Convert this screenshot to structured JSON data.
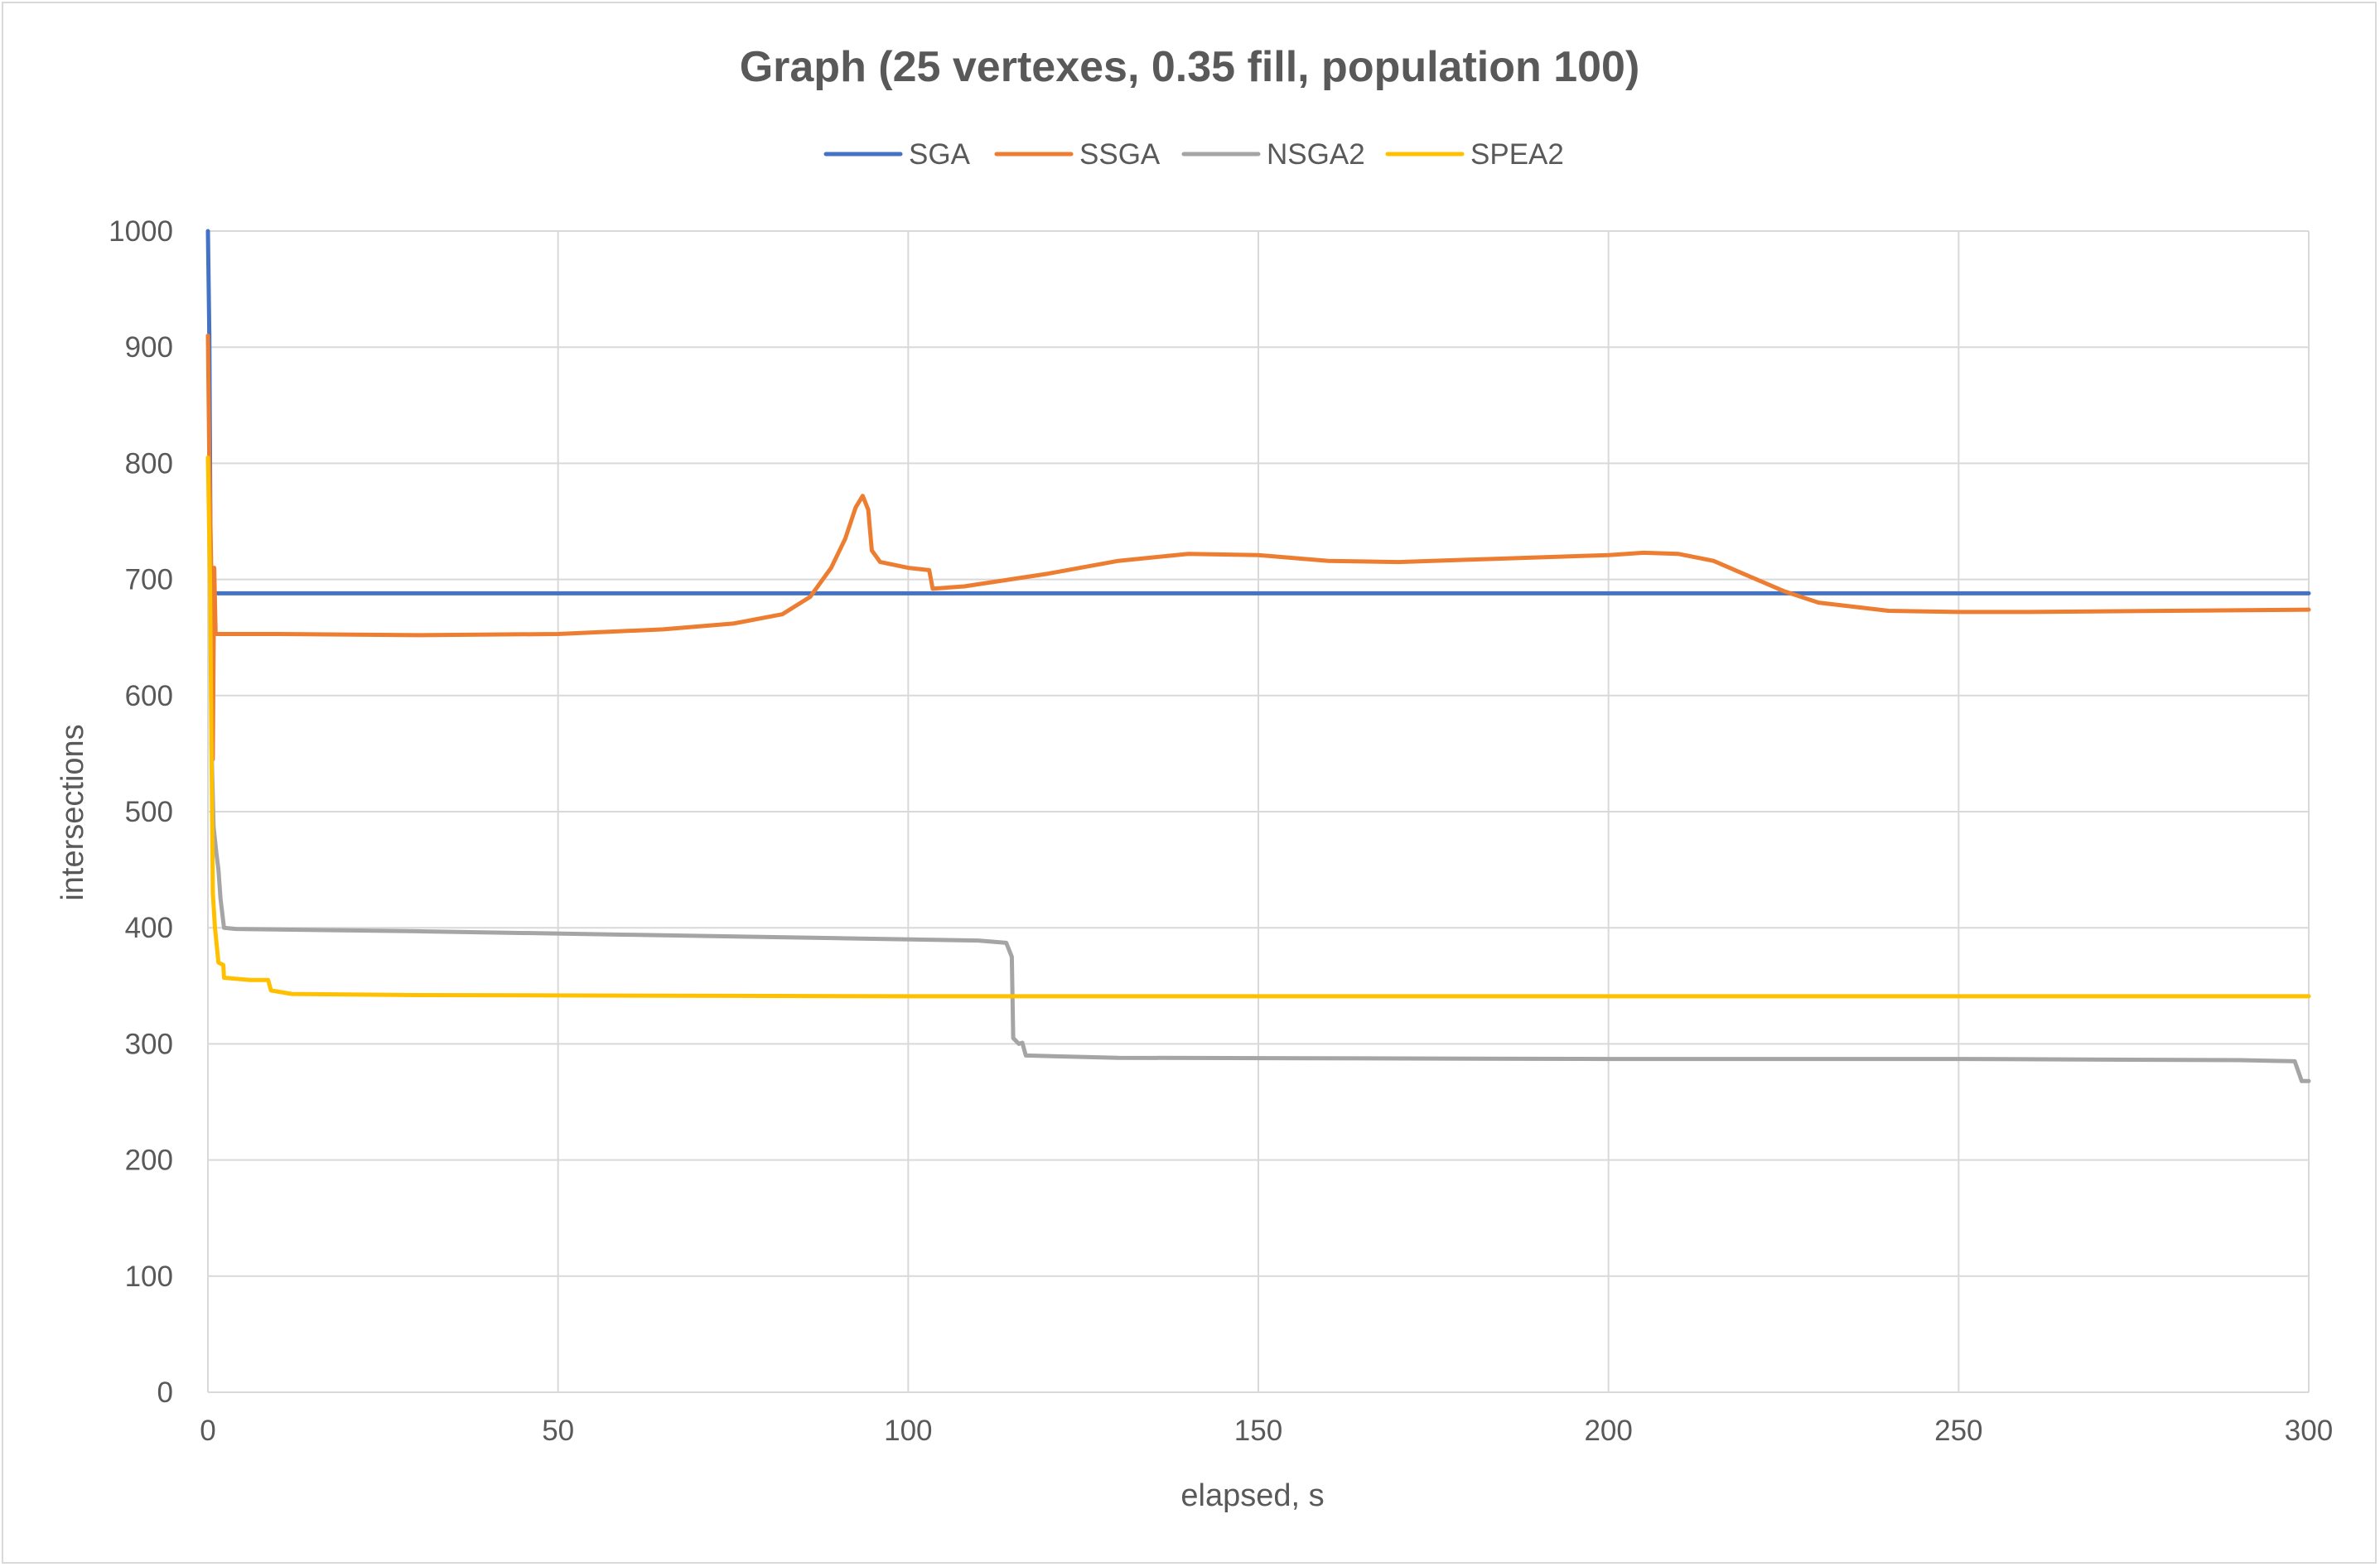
{
  "chart_data": {
    "type": "line",
    "title": "Graph (25 vertexes, 0.35 fill, population 100)",
    "xlabel": "elapsed, s",
    "ylabel": "intersections",
    "xlim": [
      0,
      300
    ],
    "ylim": [
      0,
      1000
    ],
    "xticks": [
      0,
      50,
      100,
      150,
      200,
      250,
      300
    ],
    "yticks": [
      0,
      100,
      200,
      300,
      400,
      500,
      600,
      700,
      800,
      900,
      1000
    ],
    "grid": true,
    "legend_position": "top",
    "series": [
      {
        "name": "SGA",
        "color": "#4472c4",
        "points": [
          [
            0,
            1000
          ],
          [
            0.2,
            910
          ],
          [
            0.4,
            688
          ],
          [
            300,
            688
          ]
        ]
      },
      {
        "name": "SSGA",
        "color": "#ed7d31",
        "points": [
          [
            0,
            910
          ],
          [
            0.2,
            800
          ],
          [
            0.5,
            700
          ],
          [
            0.7,
            545
          ],
          [
            0.9,
            710
          ],
          [
            1.1,
            653
          ],
          [
            10,
            653
          ],
          [
            30,
            652
          ],
          [
            50,
            653
          ],
          [
            65,
            657
          ],
          [
            75,
            662
          ],
          [
            82,
            670
          ],
          [
            86,
            685
          ],
          [
            89,
            710
          ],
          [
            91,
            735
          ],
          [
            92.5,
            762
          ],
          [
            93.5,
            772
          ],
          [
            94.3,
            760
          ],
          [
            94.8,
            725
          ],
          [
            96,
            715
          ],
          [
            100,
            710
          ],
          [
            103,
            708
          ],
          [
            103.5,
            692
          ],
          [
            108,
            694
          ],
          [
            120,
            705
          ],
          [
            130,
            716
          ],
          [
            140,
            722
          ],
          [
            150,
            721
          ],
          [
            160,
            716
          ],
          [
            170,
            715
          ],
          [
            180,
            717
          ],
          [
            190,
            719
          ],
          [
            200,
            721
          ],
          [
            205,
            723
          ],
          [
            210,
            722
          ],
          [
            215,
            716
          ],
          [
            220,
            703
          ],
          [
            225,
            690
          ],
          [
            230,
            680
          ],
          [
            240,
            673
          ],
          [
            250,
            672
          ],
          [
            260,
            672
          ],
          [
            280,
            673
          ],
          [
            300,
            674
          ]
        ]
      },
      {
        "name": "NSGA2",
        "color": "#a5a5a5",
        "points": [
          [
            0.5,
            560
          ],
          [
            0.8,
            487
          ],
          [
            1.2,
            465
          ],
          [
            1.5,
            450
          ],
          [
            1.8,
            425
          ],
          [
            2.3,
            400
          ],
          [
            4,
            399
          ],
          [
            30,
            397
          ],
          [
            60,
            394
          ],
          [
            90,
            391
          ],
          [
            110,
            389
          ],
          [
            114,
            387
          ],
          [
            114.8,
            375
          ],
          [
            115,
            305
          ],
          [
            115.8,
            300
          ],
          [
            116.3,
            301
          ],
          [
            116.8,
            290
          ],
          [
            130,
            288
          ],
          [
            200,
            287
          ],
          [
            250,
            287
          ],
          [
            290,
            286
          ],
          [
            298,
            285
          ],
          [
            299,
            268
          ],
          [
            300,
            268
          ]
        ]
      },
      {
        "name": "SPEA2",
        "color": "#ffc000",
        "points": [
          [
            0,
            805
          ],
          [
            0.3,
            700
          ],
          [
            0.5,
            560
          ],
          [
            0.7,
            430
          ],
          [
            1,
            400
          ],
          [
            1.5,
            370
          ],
          [
            2.2,
            368
          ],
          [
            2.3,
            357
          ],
          [
            6,
            355
          ],
          [
            8.6,
            355
          ],
          [
            9,
            346
          ],
          [
            12,
            343
          ],
          [
            30,
            342
          ],
          [
            100,
            341
          ],
          [
            300,
            341
          ]
        ]
      }
    ]
  }
}
